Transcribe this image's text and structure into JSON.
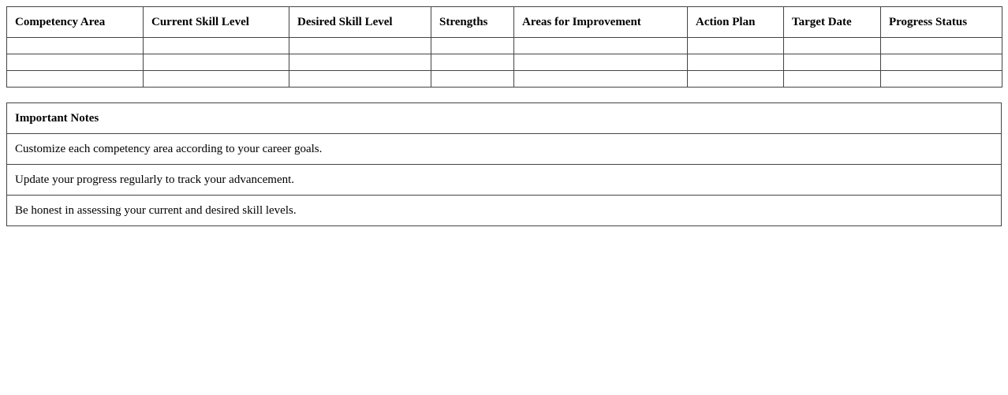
{
  "competency_table": {
    "headers": [
      "Competency Area",
      "Current Skill Level",
      "Desired Skill Level",
      "Strengths",
      "Areas for Improvement",
      "Action Plan",
      "Target Date",
      "Progress Status"
    ],
    "rows": [
      [
        "",
        "",
        "",
        "",
        "",
        "",
        "",
        ""
      ],
      [
        "",
        "",
        "",
        "",
        "",
        "",
        "",
        ""
      ],
      [
        "",
        "",
        "",
        "",
        "",
        "",
        "",
        ""
      ]
    ]
  },
  "notes": {
    "title": "Important Notes",
    "items": [
      "Customize each competency area according to your career goals.",
      "Update your progress regularly to track your advancement.",
      "Be honest in assessing your current and desired skill levels."
    ]
  }
}
